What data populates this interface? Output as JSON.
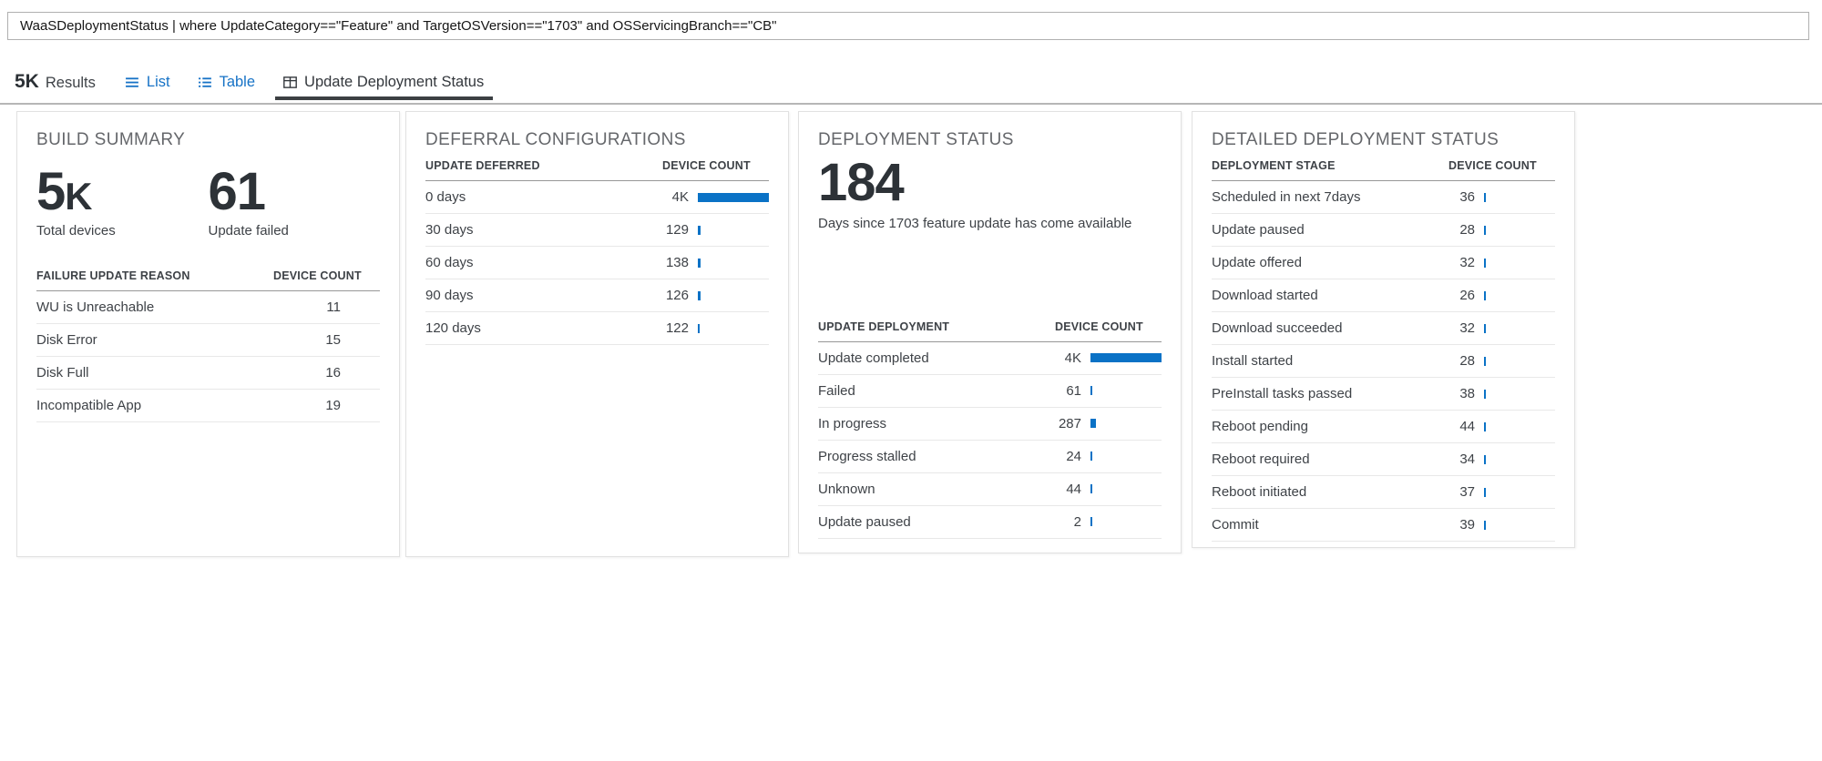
{
  "query_bar": {
    "query": "WaaSDeploymentStatus | where UpdateCategory==\"Feature\" and TargetOSVersion==\"1703\" and OSServicingBranch==\"CB\""
  },
  "tab_bar": {
    "results_count": "5K",
    "results_label": "Results",
    "tabs": [
      {
        "id": "list",
        "label": "List",
        "icon": "list-icon",
        "active": false
      },
      {
        "id": "table",
        "label": "Table",
        "icon": "table-icon",
        "active": false
      },
      {
        "id": "update-deployment-status",
        "label": "Update Deployment Status",
        "icon": "grid-icon",
        "active": true
      }
    ]
  },
  "colors": {
    "accent_blue": "#1672c6",
    "bar_blue": "#0a72c6",
    "active_tab_text": "#33373c",
    "panel_title_gray": "#65676b",
    "dark_number": "#2d3237"
  },
  "panels": {
    "build_summary": {
      "title": "BUILD SUMMARY",
      "metrics": [
        {
          "value": "5K",
          "label": "Total devices"
        },
        {
          "value": "61",
          "label": "Update failed"
        }
      ],
      "table": {
        "columns": [
          "FAILURE UPDATE REASON",
          "DEVICE COUNT"
        ],
        "rows": [
          {
            "label": "WU is Unreachable",
            "count": "11"
          },
          {
            "label": "Disk Error",
            "count": "15"
          },
          {
            "label": "Disk Full",
            "count": "16"
          },
          {
            "label": "Incompatible App",
            "count": "19"
          }
        ]
      }
    },
    "deferral_configurations": {
      "title": "DEFERRAL CONFIGURATIONS",
      "table": {
        "columns": [
          "UPDATE DEFERRED",
          "DEVICE COUNT"
        ],
        "max_value": 4000,
        "rows": [
          {
            "label": "0 days",
            "count": "4K",
            "value": 4000
          },
          {
            "label": "30 days",
            "count": "129",
            "value": 129
          },
          {
            "label": "60 days",
            "count": "138",
            "value": 138
          },
          {
            "label": "90 days",
            "count": "126",
            "value": 126
          },
          {
            "label": "120 days",
            "count": "122",
            "value": 122
          }
        ]
      }
    },
    "deployment_status": {
      "title": "DEPLOYMENT STATUS",
      "metric": {
        "value": "184",
        "label": "Days since 1703 feature update has come available"
      },
      "table": {
        "columns": [
          "UPDATE DEPLOYMENT",
          "DEVICE COUNT"
        ],
        "max_value": 4000,
        "rows": [
          {
            "label": "Update completed",
            "count": "4K",
            "value": 4000
          },
          {
            "label": "Failed",
            "count": "61",
            "value": 61
          },
          {
            "label": "In progress",
            "count": "287",
            "value": 287
          },
          {
            "label": "Progress stalled",
            "count": "24",
            "value": 24
          },
          {
            "label": "Unknown",
            "count": "44",
            "value": 44
          },
          {
            "label": "Update paused",
            "count": "2",
            "value": 2
          }
        ]
      }
    },
    "detailed_deployment_status": {
      "title": "DETAILED DEPLOYMENT STATUS",
      "table": {
        "columns": [
          "DEPLOYMENT STAGE",
          "DEVICE COUNT"
        ],
        "max_value": 4000,
        "rows": [
          {
            "label": "Scheduled in next 7days",
            "count": "36",
            "value": 36
          },
          {
            "label": "Update paused",
            "count": "28",
            "value": 28
          },
          {
            "label": "Update offered",
            "count": "32",
            "value": 32
          },
          {
            "label": "Download started",
            "count": "26",
            "value": 26
          },
          {
            "label": "Download succeeded",
            "count": "32",
            "value": 32
          },
          {
            "label": "Install started",
            "count": "28",
            "value": 28
          },
          {
            "label": "PreInstall tasks passed",
            "count": "38",
            "value": 38
          },
          {
            "label": "Reboot pending",
            "count": "44",
            "value": 44
          },
          {
            "label": "Reboot required",
            "count": "34",
            "value": 34
          },
          {
            "label": "Reboot initiated",
            "count": "37",
            "value": 37
          },
          {
            "label": "Commit",
            "count": "39",
            "value": 39
          }
        ]
      }
    }
  }
}
